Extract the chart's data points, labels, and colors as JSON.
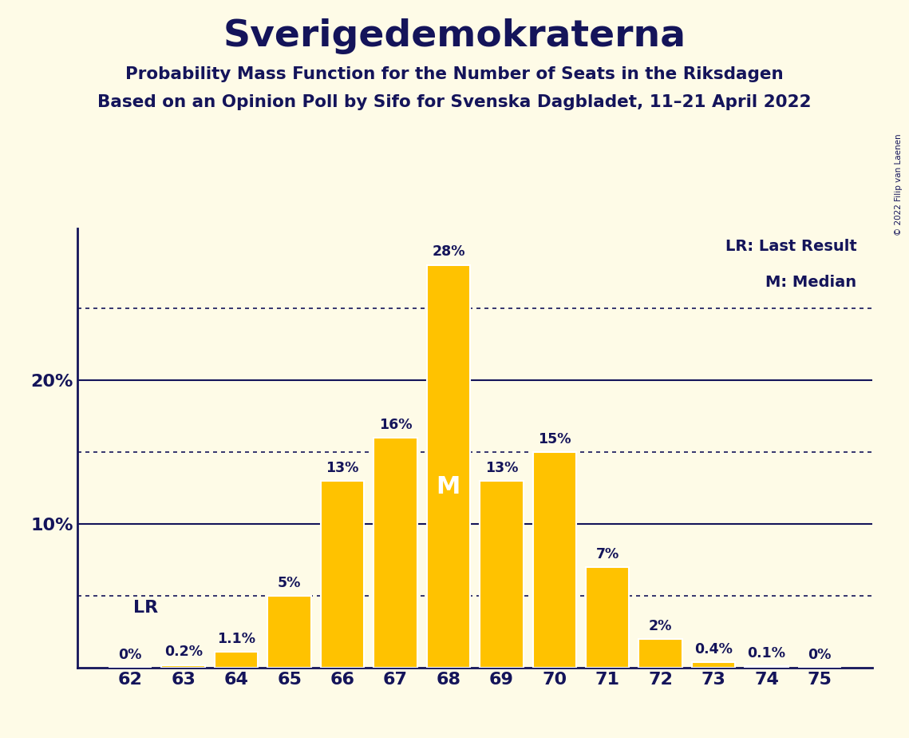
{
  "title": "Sverigedemokraterna",
  "subtitle1": "Probability Mass Function for the Number of Seats in the Riksdagen",
  "subtitle2": "Based on an Opinion Poll by Sifo for Svenska Dagbladet, 11–21 April 2022",
  "copyright": "© 2022 Filip van Laenen",
  "seats": [
    62,
    63,
    64,
    65,
    66,
    67,
    68,
    69,
    70,
    71,
    72,
    73,
    74,
    75
  ],
  "probabilities": [
    0.0,
    0.2,
    1.1,
    5.0,
    13.0,
    16.0,
    28.0,
    13.0,
    15.0,
    7.0,
    2.0,
    0.4,
    0.1,
    0.0
  ],
  "labels": [
    "0%",
    "0.2%",
    "1.1%",
    "5%",
    "13%",
    "16%",
    "28%",
    "13%",
    "15%",
    "7%",
    "2%",
    "0.4%",
    "0.1%",
    "0%"
  ],
  "bar_color": "#FFC200",
  "bar_edge_color": "#FFFFFF",
  "background_color": "#FEFBE7",
  "text_color": "#14145A",
  "dotted_lines": [
    5.0,
    15.0,
    25.0
  ],
  "solid_lines": [
    10.0,
    20.0
  ],
  "median_seat": 68,
  "lr_seat": 62,
  "legend_lr": "LR: Last Result",
  "legend_m": "M: Median",
  "lr_label": "LR",
  "ylim_max": 30.5,
  "bar_width": 0.82
}
